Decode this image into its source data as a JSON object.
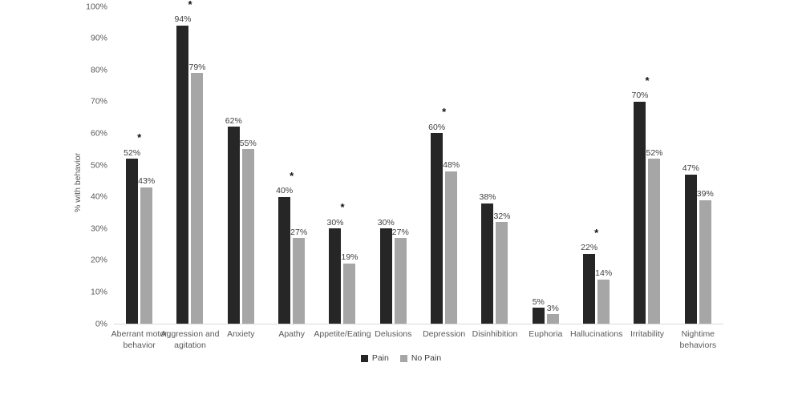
{
  "chart_data": {
    "type": "bar",
    "title": "",
    "xlabel": "",
    "ylabel": "% with behavior",
    "ylim": [
      0,
      100
    ],
    "grid": false,
    "legend_position": "bottom",
    "yticks": [
      "0%",
      "10%",
      "20%",
      "30%",
      "40%",
      "50%",
      "60%",
      "70%",
      "80%",
      "90%",
      "100%"
    ],
    "categories": [
      "Aberrant motor behavior",
      "Aggression and agitation",
      "Anxiety",
      "Apathy",
      "Appetite/Eating",
      "Delusions",
      "Depression",
      "Disinhibition",
      "Euphoria",
      "Hallucinations",
      "Irritability",
      "Nightime behaviors"
    ],
    "series": [
      {
        "name": "Pain",
        "color": "#262626",
        "values": [
          52,
          94,
          62,
          40,
          30,
          30,
          60,
          38,
          5,
          22,
          70,
          47
        ],
        "labels": [
          "52%",
          "94%",
          "62%",
          "40%",
          "30%",
          "30%",
          "60%",
          "38%",
          "5%",
          "22%",
          "70%",
          "47%"
        ]
      },
      {
        "name": "No Pain",
        "color": "#a6a6a6",
        "values": [
          43,
          79,
          55,
          27,
          19,
          27,
          48,
          32,
          3,
          14,
          52,
          39
        ],
        "labels": [
          "43%",
          "79%",
          "55%",
          "27%",
          "19%",
          "27%",
          "48%",
          "32%",
          "3%",
          "14%",
          "52%",
          "39%"
        ]
      }
    ],
    "significance_marker": "*",
    "significant": [
      true,
      true,
      false,
      true,
      true,
      false,
      true,
      false,
      false,
      true,
      true,
      false
    ],
    "significant_categories": [
      "Aberrant motor behavior",
      "Aggression and agitation",
      "Apathy",
      "Appetite/Eating",
      "Depression",
      "Hallucinations",
      "Irritability"
    ]
  },
  "colors": {
    "background": "#ffffff",
    "axis_line": "#d9d9d9",
    "tick_text": "#595959",
    "value_label_text": "#404040",
    "pain_bar": "#262626",
    "no_pain_bar": "#a6a6a6"
  }
}
